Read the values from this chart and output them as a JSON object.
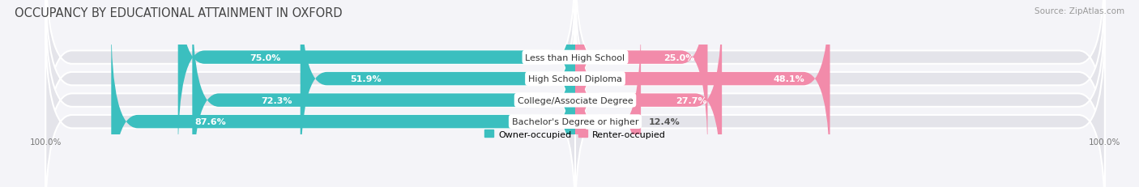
{
  "title": "OCCUPANCY BY EDUCATIONAL ATTAINMENT IN OXFORD",
  "source": "Source: ZipAtlas.com",
  "categories": [
    "Less than High School",
    "High School Diploma",
    "College/Associate Degree",
    "Bachelor's Degree or higher"
  ],
  "owner_pct": [
    75.0,
    51.9,
    72.3,
    87.6
  ],
  "renter_pct": [
    25.0,
    48.1,
    27.7,
    12.4
  ],
  "owner_color": "#3bbfbf",
  "renter_color": "#f28baa",
  "bar_bg_color": "#e4e4ea",
  "background_color": "#f4f4f8",
  "title_fontsize": 10.5,
  "source_fontsize": 7.5,
  "label_fontsize": 8.0,
  "pct_fontsize": 8.0,
  "tick_fontsize": 7.5,
  "bar_height": 0.62,
  "legend_label_owner": "Owner-occupied",
  "legend_label_renter": "Renter-occupied",
  "x_left_label": "100.0%",
  "x_right_label": "100.0%"
}
